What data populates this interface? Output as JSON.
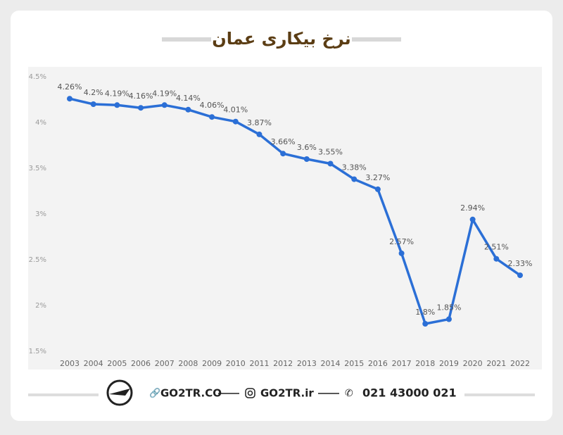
{
  "chart_data": {
    "type": "line",
    "title": "نرخ بیکاری عمان",
    "categories": [
      "2003",
      "2004",
      "2005",
      "2006",
      "2007",
      "2008",
      "2009",
      "2010",
      "2011",
      "2012",
      "2013",
      "2014",
      "2015",
      "2016",
      "2017",
      "2018",
      "2019",
      "2020",
      "2021",
      "2022"
    ],
    "values": [
      4.26,
      4.2,
      4.19,
      4.16,
      4.19,
      4.14,
      4.06,
      4.01,
      3.87,
      3.66,
      3.6,
      3.55,
      3.38,
      3.27,
      2.57,
      1.8,
      1.85,
      2.94,
      2.51,
      2.33
    ],
    "value_labels": [
      "4.26%",
      "4.2%",
      "4.19%",
      "4.16%",
      "4.19%",
      "4.14%",
      "4.06%",
      "4.01%",
      "3.87%",
      "3.66%",
      "3.6%",
      "3.55%",
      "3.38%",
      "3.27%",
      "2.57%",
      "1.8%",
      "1.85%",
      "2.94%",
      "2.51%",
      "2.33%"
    ],
    "color": "#2b6fd6",
    "ylim": [
      1.5,
      4.5
    ],
    "yticks": [
      {
        "value": 1.5,
        "label": "1.5%"
      },
      {
        "value": 2,
        "label": "2%"
      },
      {
        "value": 2.5,
        "label": "2.5%"
      },
      {
        "value": 3,
        "label": "3%"
      },
      {
        "value": 3.5,
        "label": "3.5%"
      },
      {
        "value": 4,
        "label": "4%"
      },
      {
        "value": 4.5,
        "label": "4.5%"
      }
    ],
    "grid": false
  },
  "footer": {
    "site": "GO2TR.CO",
    "instagram": "GO2TR.ir",
    "phone": "021 43000 021"
  }
}
